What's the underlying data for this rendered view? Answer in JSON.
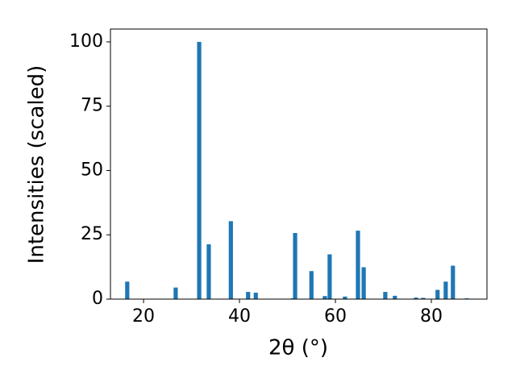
{
  "chart_data": {
    "type": "bar",
    "xlabel": "2θ (°)",
    "ylabel": "Intensities (scaled)",
    "x": [
      16.6,
      26.7,
      31.6,
      33.6,
      38.2,
      41.8,
      43.4,
      51.1,
      51.6,
      55.0,
      57.8,
      58.8,
      62.0,
      64.7,
      65.9,
      70.4,
      72.4,
      76.8,
      78.3,
      81.3,
      83.0,
      84.5,
      87.4
    ],
    "values": [
      6.8,
      4.5,
      100,
      21.3,
      30.3,
      2.8,
      2.5,
      0.3,
      25.7,
      10.9,
      1.2,
      17.4,
      1.0,
      26.6,
      12.4,
      2.8,
      1.3,
      0.6,
      0.5,
      3.6,
      6.8,
      13.0,
      0.3
    ],
    "color": "#1f77b4",
    "xlim": [
      13.1,
      91.6
    ],
    "xticks": [
      20,
      40,
      60,
      80
    ],
    "ylim": [
      0,
      105
    ],
    "yticks": [
      0,
      25,
      50,
      75,
      100
    ]
  }
}
